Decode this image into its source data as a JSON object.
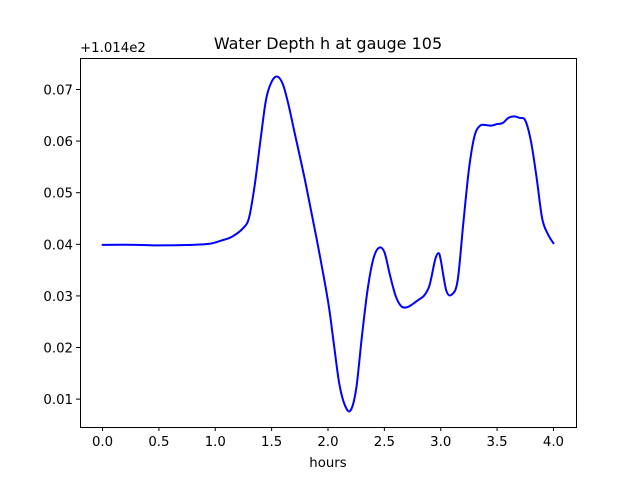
{
  "chart_data": {
    "type": "line",
    "title": "Water Depth h at gauge 105",
    "xlabel": "hours",
    "ylabel": "",
    "offset_text": "+1.014e2",
    "xlim": [
      -0.2,
      4.2
    ],
    "ylim": [
      0.0046,
      0.0761
    ],
    "grid": false,
    "x_ticks": [
      0.0,
      0.5,
      1.0,
      1.5,
      2.0,
      2.5,
      3.0,
      3.5,
      4.0
    ],
    "x_tick_labels": [
      "0.0",
      "0.5",
      "1.0",
      "1.5",
      "2.0",
      "2.5",
      "3.0",
      "3.5",
      "4.0"
    ],
    "y_ticks": [
      0.01,
      0.02,
      0.03,
      0.04,
      0.05,
      0.06,
      0.07
    ],
    "y_tick_labels": [
      "0.01",
      "0.02",
      "0.03",
      "0.04",
      "0.05",
      "0.06",
      "0.07"
    ],
    "series": [
      {
        "color": "#0000ff",
        "x": [
          0.0,
          0.3,
          0.5,
          0.8,
          0.95,
          1.05,
          1.15,
          1.25,
          1.3,
          1.35,
          1.4,
          1.45,
          1.5,
          1.55,
          1.6,
          1.65,
          1.7,
          1.8,
          1.9,
          2.0,
          2.05,
          2.1,
          2.15,
          2.2,
          2.25,
          2.3,
          2.35,
          2.4,
          2.45,
          2.5,
          2.55,
          2.6,
          2.65,
          2.7,
          2.75,
          2.8,
          2.85,
          2.9,
          2.95,
          2.98,
          3.0,
          3.05,
          3.1,
          3.15,
          3.2,
          3.25,
          3.3,
          3.35,
          3.4,
          3.45,
          3.5,
          3.55,
          3.6,
          3.65,
          3.7,
          3.75,
          3.8,
          3.85,
          3.9,
          3.95,
          4.0
        ],
        "y": [
          0.0399,
          0.0399,
          0.0398,
          0.0399,
          0.0401,
          0.0407,
          0.0415,
          0.0432,
          0.0452,
          0.0515,
          0.06,
          0.068,
          0.0715,
          0.0725,
          0.071,
          0.067,
          0.062,
          0.052,
          0.041,
          0.029,
          0.021,
          0.013,
          0.0088,
          0.0078,
          0.012,
          0.022,
          0.031,
          0.037,
          0.0393,
          0.0385,
          0.034,
          0.03,
          0.028,
          0.0278,
          0.0284,
          0.0292,
          0.03,
          0.032,
          0.037,
          0.0383,
          0.037,
          0.031,
          0.0303,
          0.033,
          0.044,
          0.0545,
          0.061,
          0.063,
          0.0631,
          0.063,
          0.0633,
          0.0635,
          0.0645,
          0.0648,
          0.0645,
          0.064,
          0.06,
          0.053,
          0.045,
          0.042,
          0.0402
        ]
      }
    ]
  }
}
